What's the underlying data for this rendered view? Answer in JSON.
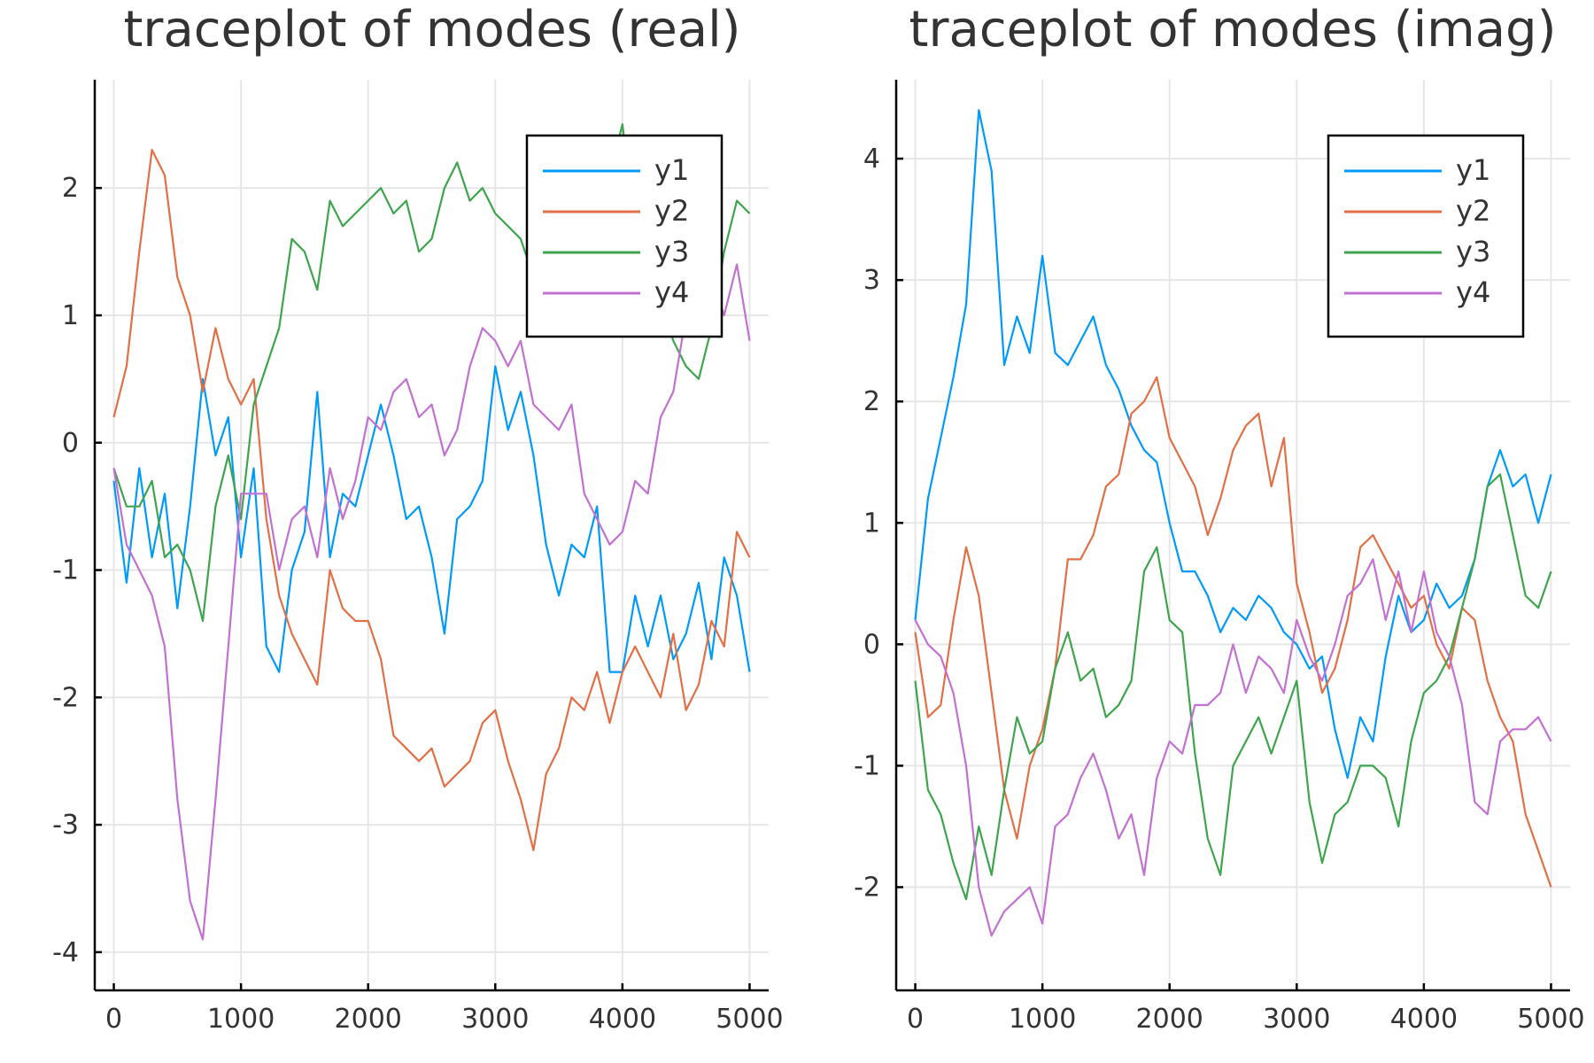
{
  "chart_data": [
    {
      "type": "line",
      "title": "traceplot of modes (real)",
      "xlabel": "",
      "ylabel": "",
      "xlim": [
        -150,
        5150
      ],
      "ylim": [
        -4.3,
        2.85
      ],
      "xticks": [
        0,
        1000,
        2000,
        3000,
        4000,
        5000
      ],
      "xtick_labels": [
        "0",
        "1000",
        "2000",
        "3000",
        "4000",
        "5000"
      ],
      "yticks": [
        -4,
        -3,
        -2,
        -1,
        0,
        1,
        2
      ],
      "ytick_labels": [
        "-4",
        "-3",
        "-2",
        "-1",
        "0",
        "1",
        "2"
      ],
      "grid": true,
      "legend": "top-right",
      "colors": [
        "#009af9",
        "#e26f46",
        "#3ea44e",
        "#c271d2"
      ],
      "series": [
        {
          "name": "y1",
          "x": [
            0,
            100,
            200,
            300,
            400,
            500,
            600,
            700,
            800,
            900,
            1000,
            1100,
            1200,
            1300,
            1400,
            1500,
            1600,
            1700,
            1800,
            1900,
            2000,
            2100,
            2200,
            2300,
            2400,
            2500,
            2600,
            2700,
            2800,
            2900,
            3000,
            3100,
            3200,
            3300,
            3400,
            3500,
            3600,
            3700,
            3800,
            3900,
            4000,
            4100,
            4200,
            4300,
            4400,
            4500,
            4600,
            4700,
            4800,
            4900,
            5000
          ],
          "values": [
            -0.3,
            -1.1,
            -0.2,
            -0.9,
            -0.4,
            -1.3,
            -0.5,
            0.5,
            -0.1,
            0.2,
            -0.9,
            -0.2,
            -1.6,
            -1.8,
            -1.0,
            -0.7,
            0.4,
            -0.9,
            -0.4,
            -0.5,
            -0.1,
            0.3,
            -0.1,
            -0.6,
            -0.5,
            -0.9,
            -1.5,
            -0.6,
            -0.5,
            -0.3,
            0.6,
            0.1,
            0.4,
            -0.1,
            -0.8,
            -1.2,
            -0.8,
            -0.9,
            -0.5,
            -1.8,
            -1.8,
            -1.2,
            -1.6,
            -1.2,
            -1.7,
            -1.5,
            -1.1,
            -1.7,
            -0.9,
            -1.2,
            -1.8
          ]
        },
        {
          "name": "y2",
          "x": [
            0,
            100,
            200,
            300,
            400,
            500,
            600,
            700,
            800,
            900,
            1000,
            1100,
            1200,
            1300,
            1400,
            1500,
            1600,
            1700,
            1800,
            1900,
            2000,
            2100,
            2200,
            2300,
            2400,
            2500,
            2600,
            2700,
            2800,
            2900,
            3000,
            3100,
            3200,
            3300,
            3400,
            3500,
            3600,
            3700,
            3800,
            3900,
            4000,
            4100,
            4200,
            4300,
            4400,
            4500,
            4600,
            4700,
            4800,
            4900,
            5000
          ],
          "values": [
            0.2,
            0.6,
            1.5,
            2.3,
            2.1,
            1.3,
            1.0,
            0.4,
            0.9,
            0.5,
            0.3,
            0.5,
            -0.6,
            -1.2,
            -1.5,
            -1.7,
            -1.9,
            -1.0,
            -1.3,
            -1.4,
            -1.4,
            -1.7,
            -2.3,
            -2.4,
            -2.5,
            -2.4,
            -2.7,
            -2.6,
            -2.5,
            -2.2,
            -2.1,
            -2.5,
            -2.8,
            -3.2,
            -2.6,
            -2.4,
            -2.0,
            -2.1,
            -1.8,
            -2.2,
            -1.8,
            -1.6,
            -1.8,
            -2.0,
            -1.5,
            -2.1,
            -1.9,
            -1.4,
            -1.6,
            -0.7,
            -0.9
          ]
        },
        {
          "name": "y3",
          "x": [
            0,
            100,
            200,
            300,
            400,
            500,
            600,
            700,
            800,
            900,
            1000,
            1100,
            1200,
            1300,
            1400,
            1500,
            1600,
            1700,
            1800,
            1900,
            2000,
            2100,
            2200,
            2300,
            2400,
            2500,
            2600,
            2700,
            2800,
            2900,
            3000,
            3100,
            3200,
            3300,
            3400,
            3500,
            3600,
            3700,
            3800,
            3900,
            4000,
            4100,
            4200,
            4300,
            4400,
            4500,
            4600,
            4700,
            4800,
            4900,
            5000
          ],
          "values": [
            -0.2,
            -0.5,
            -0.5,
            -0.3,
            -0.9,
            -0.8,
            -1.0,
            -1.4,
            -0.5,
            -0.1,
            -0.6,
            0.3,
            0.6,
            0.9,
            1.6,
            1.5,
            1.2,
            1.9,
            1.7,
            1.8,
            1.9,
            2.0,
            1.8,
            1.9,
            1.5,
            1.6,
            2.0,
            2.2,
            1.9,
            2.0,
            1.8,
            1.7,
            1.6,
            1.3,
            1.5,
            1.8,
            2.1,
            2.0,
            2.2,
            2.1,
            2.5,
            1.6,
            1.3,
            1.1,
            0.8,
            0.6,
            0.5,
            0.9,
            1.5,
            1.9,
            1.8
          ]
        },
        {
          "name": "y4",
          "x": [
            0,
            100,
            200,
            300,
            400,
            500,
            600,
            700,
            800,
            900,
            1000,
            1100,
            1200,
            1300,
            1400,
            1500,
            1600,
            1700,
            1800,
            1900,
            2000,
            2100,
            2200,
            2300,
            2400,
            2500,
            2600,
            2700,
            2800,
            2900,
            3000,
            3100,
            3200,
            3300,
            3400,
            3500,
            3600,
            3700,
            3800,
            3900,
            4000,
            4100,
            4200,
            4300,
            4400,
            4500,
            4600,
            4700,
            4800,
            4900,
            5000
          ],
          "values": [
            -0.2,
            -0.8,
            -1.0,
            -1.2,
            -1.6,
            -2.8,
            -3.6,
            -3.9,
            -2.8,
            -1.6,
            -0.4,
            -0.4,
            -0.4,
            -1.0,
            -0.6,
            -0.5,
            -0.9,
            -0.2,
            -0.6,
            -0.3,
            0.2,
            0.1,
            0.4,
            0.5,
            0.2,
            0.3,
            -0.1,
            0.1,
            0.6,
            0.9,
            0.8,
            0.6,
            0.8,
            0.3,
            0.2,
            0.1,
            0.3,
            -0.4,
            -0.6,
            -0.8,
            -0.7,
            -0.3,
            -0.4,
            0.2,
            0.4,
            1.0,
            1.1,
            1.3,
            1.0,
            1.4,
            0.8
          ]
        }
      ]
    },
    {
      "type": "line",
      "title": "traceplot of modes (imag)",
      "xlabel": "",
      "ylabel": "",
      "xlim": [
        -150,
        5150
      ],
      "ylim": [
        -2.85,
        4.65
      ],
      "xticks": [
        0,
        1000,
        2000,
        3000,
        4000,
        5000
      ],
      "xtick_labels": [
        "0",
        "1000",
        "2000",
        "3000",
        "4000",
        "5000"
      ],
      "yticks": [
        -2,
        -1,
        0,
        1,
        2,
        3,
        4
      ],
      "ytick_labels": [
        "-2",
        "-1",
        "0",
        "1",
        "2",
        "3",
        "4"
      ],
      "grid": true,
      "legend": "top-right",
      "colors": [
        "#009af9",
        "#e26f46",
        "#3ea44e",
        "#c271d2"
      ],
      "series": [
        {
          "name": "y1",
          "x": [
            0,
            100,
            200,
            300,
            400,
            500,
            600,
            700,
            800,
            900,
            1000,
            1100,
            1200,
            1300,
            1400,
            1500,
            1600,
            1700,
            1800,
            1900,
            2000,
            2100,
            2200,
            2300,
            2400,
            2500,
            2600,
            2700,
            2800,
            2900,
            3000,
            3100,
            3200,
            3300,
            3400,
            3500,
            3600,
            3700,
            3800,
            3900,
            4000,
            4100,
            4200,
            4300,
            4400,
            4500,
            4600,
            4700,
            4800,
            4900,
            5000
          ],
          "values": [
            0.2,
            1.2,
            1.7,
            2.2,
            2.8,
            4.4,
            3.9,
            2.3,
            2.7,
            2.4,
            3.2,
            2.4,
            2.3,
            2.5,
            2.7,
            2.3,
            2.1,
            1.8,
            1.6,
            1.5,
            1.0,
            0.6,
            0.6,
            0.4,
            0.1,
            0.3,
            0.2,
            0.4,
            0.3,
            0.1,
            0.0,
            -0.2,
            -0.1,
            -0.7,
            -1.1,
            -0.6,
            -0.8,
            -0.1,
            0.4,
            0.1,
            0.2,
            0.5,
            0.3,
            0.4,
            0.7,
            1.3,
            1.6,
            1.3,
            1.4,
            1.0,
            1.4
          ]
        },
        {
          "name": "y2",
          "x": [
            0,
            100,
            200,
            300,
            400,
            500,
            600,
            700,
            800,
            900,
            1000,
            1100,
            1200,
            1300,
            1400,
            1500,
            1600,
            1700,
            1800,
            1900,
            2000,
            2100,
            2200,
            2300,
            2400,
            2500,
            2600,
            2700,
            2800,
            2900,
            3000,
            3100,
            3200,
            3300,
            3400,
            3500,
            3600,
            3700,
            3800,
            3900,
            4000,
            4100,
            4200,
            4300,
            4400,
            4500,
            4600,
            4700,
            4800,
            4900,
            5000
          ],
          "values": [
            0.1,
            -0.6,
            -0.5,
            0.2,
            0.8,
            0.4,
            -0.4,
            -1.2,
            -1.6,
            -1.0,
            -0.7,
            -0.2,
            0.7,
            0.7,
            0.9,
            1.3,
            1.4,
            1.9,
            2.0,
            2.2,
            1.7,
            1.5,
            1.3,
            0.9,
            1.2,
            1.6,
            1.8,
            1.9,
            1.3,
            1.7,
            0.5,
            0.1,
            -0.4,
            -0.2,
            0.2,
            0.8,
            0.9,
            0.7,
            0.5,
            0.3,
            0.4,
            0.0,
            -0.2,
            0.3,
            0.2,
            -0.3,
            -0.6,
            -0.8,
            -1.4,
            -1.7,
            -2.0
          ]
        },
        {
          "name": "y3",
          "x": [
            0,
            100,
            200,
            300,
            400,
            500,
            600,
            700,
            800,
            900,
            1000,
            1100,
            1200,
            1300,
            1400,
            1500,
            1600,
            1700,
            1800,
            1900,
            2000,
            2100,
            2200,
            2300,
            2400,
            2500,
            2600,
            2700,
            2800,
            2900,
            3000,
            3100,
            3200,
            3300,
            3400,
            3500,
            3600,
            3700,
            3800,
            3900,
            4000,
            4100,
            4200,
            4300,
            4400,
            4500,
            4600,
            4700,
            4800,
            4900,
            5000
          ],
          "values": [
            -0.3,
            -1.2,
            -1.4,
            -1.8,
            -2.1,
            -1.5,
            -1.9,
            -1.2,
            -0.6,
            -0.9,
            -0.8,
            -0.2,
            0.1,
            -0.3,
            -0.2,
            -0.6,
            -0.5,
            -0.3,
            0.6,
            0.8,
            0.2,
            0.1,
            -0.9,
            -1.6,
            -1.9,
            -1.0,
            -0.8,
            -0.6,
            -0.9,
            -0.6,
            -0.3,
            -1.3,
            -1.8,
            -1.4,
            -1.3,
            -1.0,
            -1.0,
            -1.1,
            -1.5,
            -0.8,
            -0.4,
            -0.3,
            -0.1,
            0.3,
            0.7,
            1.3,
            1.4,
            0.9,
            0.4,
            0.3,
            0.6
          ]
        },
        {
          "name": "y4",
          "x": [
            0,
            100,
            200,
            300,
            400,
            500,
            600,
            700,
            800,
            900,
            1000,
            1100,
            1200,
            1300,
            1400,
            1500,
            1600,
            1700,
            1800,
            1900,
            2000,
            2100,
            2200,
            2300,
            2400,
            2500,
            2600,
            2700,
            2800,
            2900,
            3000,
            3100,
            3200,
            3300,
            3400,
            3500,
            3600,
            3700,
            3800,
            3900,
            4000,
            4100,
            4200,
            4300,
            4400,
            4500,
            4600,
            4700,
            4800,
            4900,
            5000
          ],
          "values": [
            0.2,
            0.0,
            -0.1,
            -0.4,
            -1.0,
            -2.0,
            -2.4,
            -2.2,
            -2.1,
            -2.0,
            -2.3,
            -1.5,
            -1.4,
            -1.1,
            -0.9,
            -1.2,
            -1.6,
            -1.4,
            -1.9,
            -1.1,
            -0.8,
            -0.9,
            -0.5,
            -0.5,
            -0.4,
            0.0,
            -0.4,
            -0.1,
            -0.2,
            -0.4,
            0.2,
            -0.1,
            -0.3,
            0.0,
            0.4,
            0.5,
            0.7,
            0.2,
            0.6,
            0.1,
            0.6,
            0.1,
            -0.1,
            -0.5,
            -1.3,
            -1.4,
            -0.8,
            -0.7,
            -0.7,
            -0.6,
            -0.8
          ]
        }
      ]
    }
  ]
}
